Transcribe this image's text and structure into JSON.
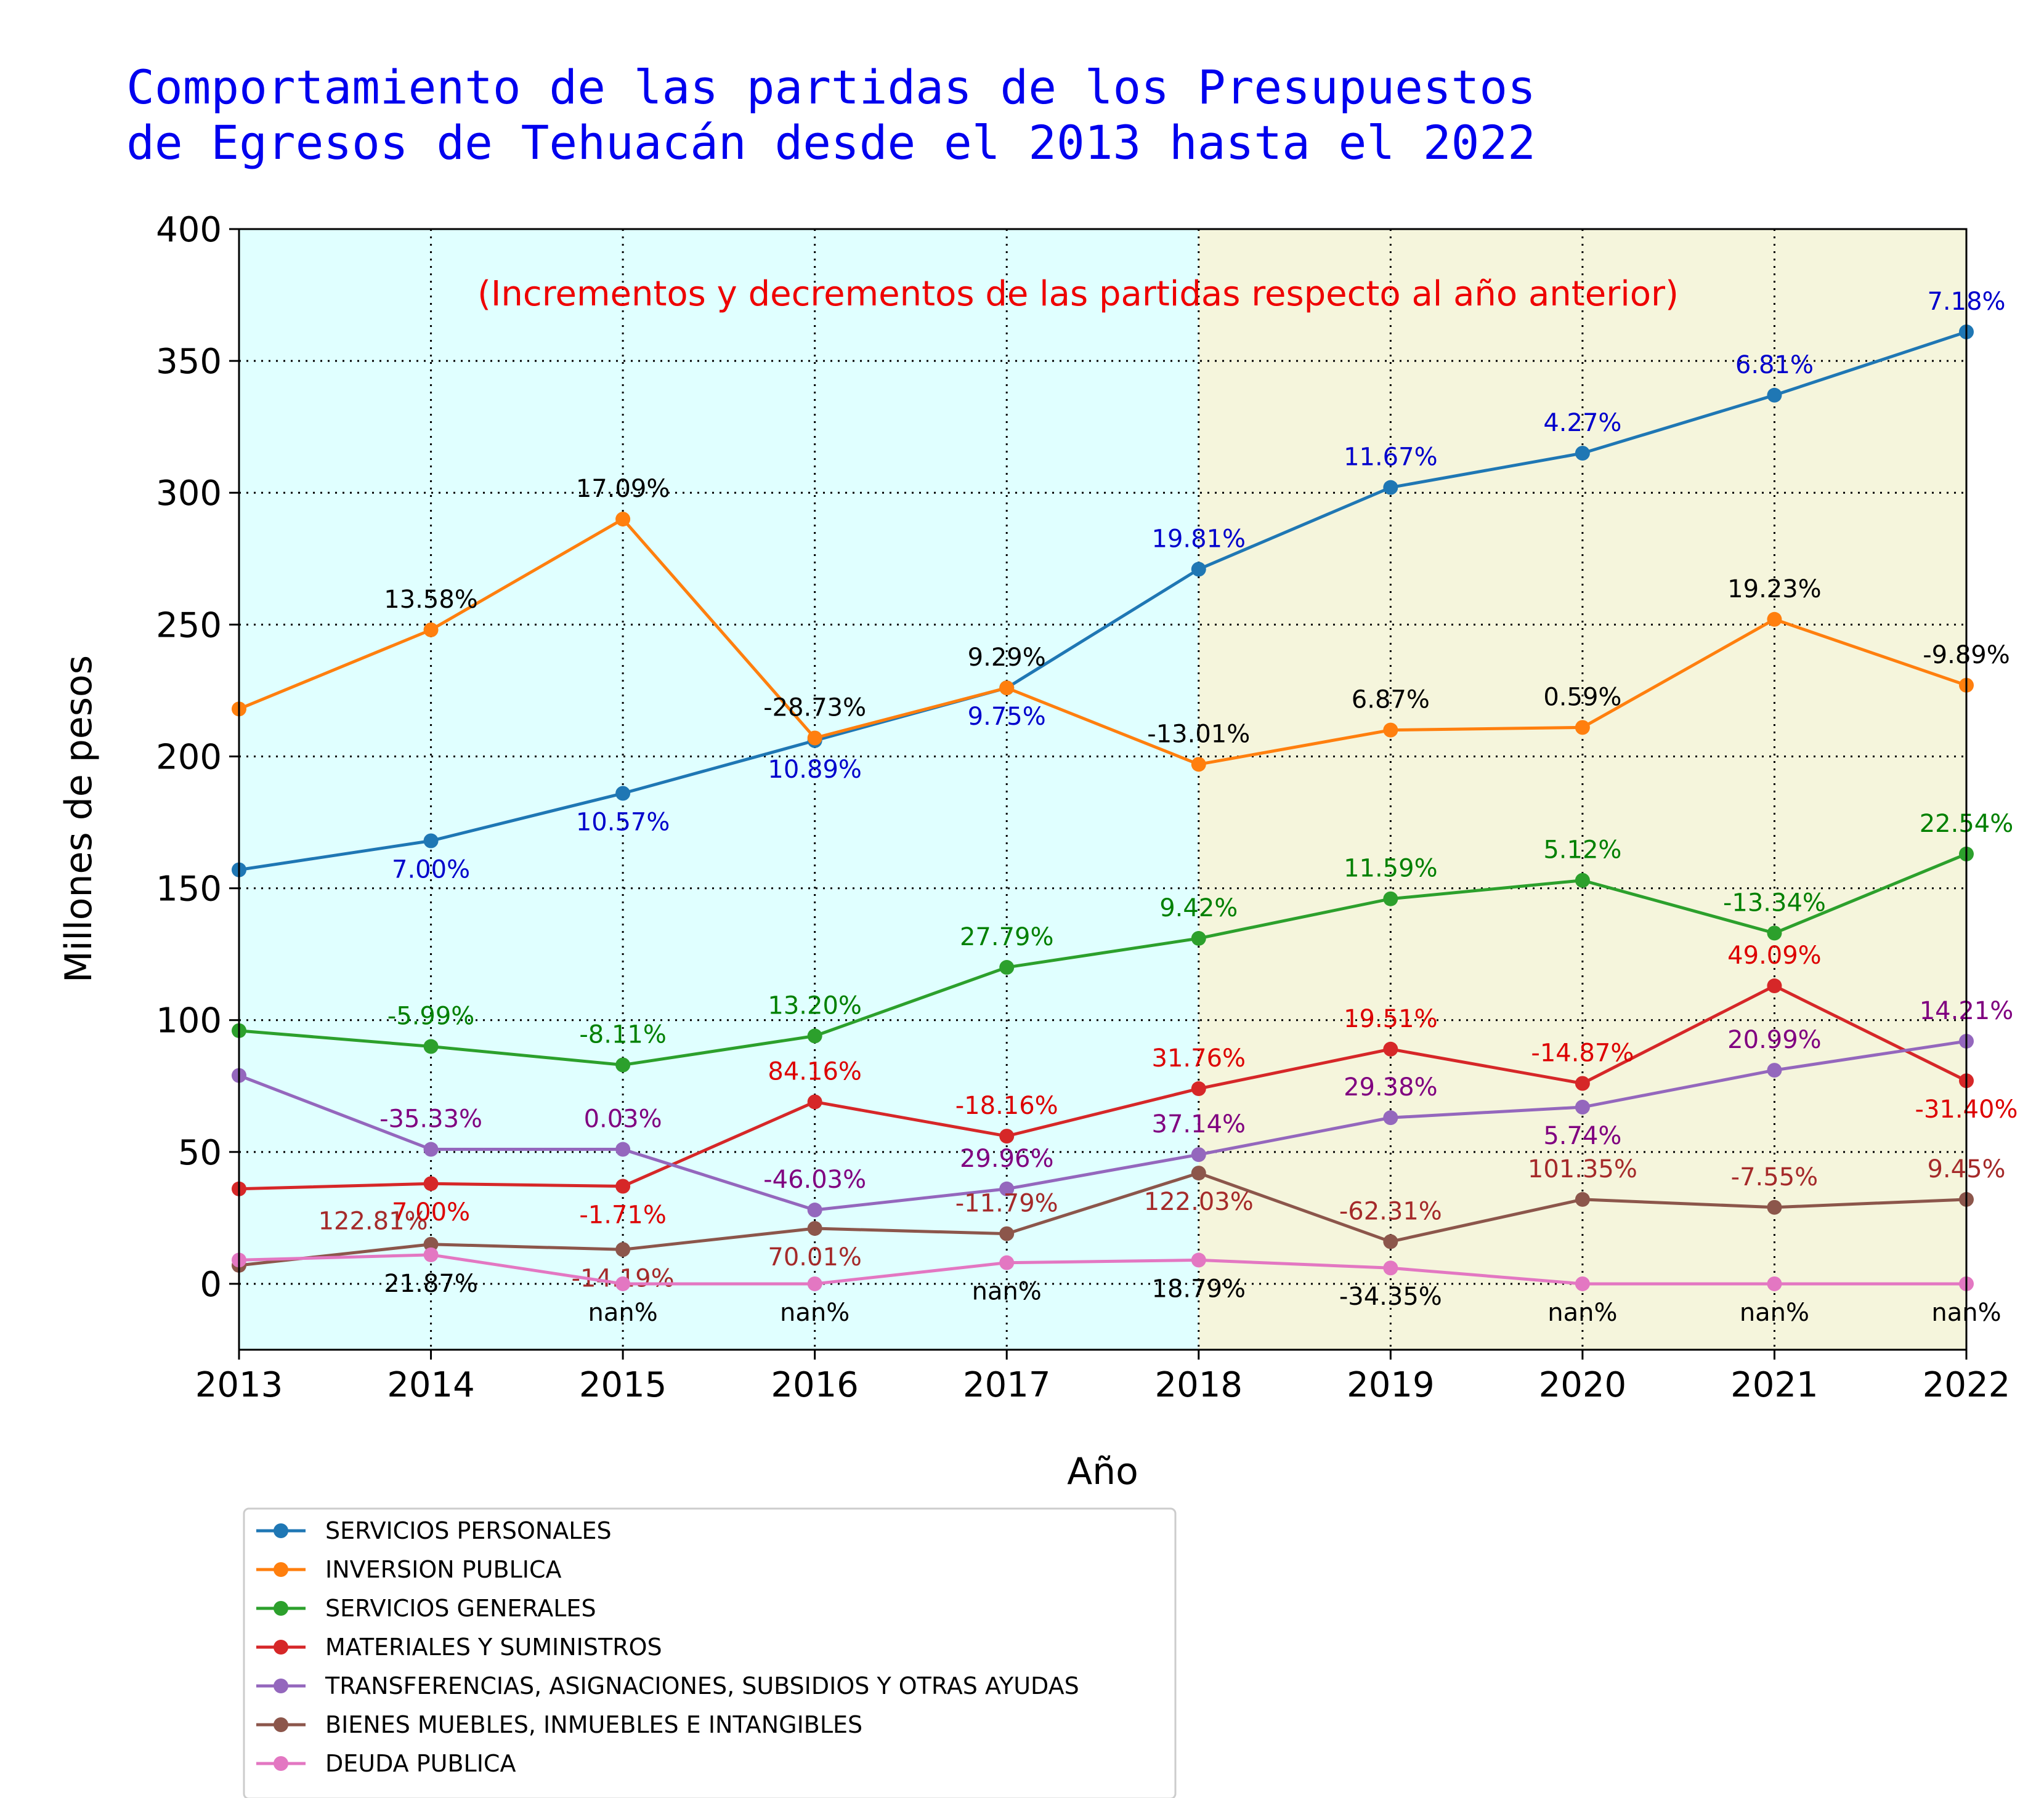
{
  "chart_data": {
    "type": "line",
    "title": [
      "Comportamiento de las partidas de los Presupuestos",
      "de Egresos de Tehuacán desde el 2013 hasta el 2022"
    ],
    "subtitle": "(Incrementos y decrementos de las partidas respecto al año anterior)",
    "xlabel": "Año",
    "ylabel": "Millones de pesos",
    "x": [
      2013,
      2014,
      2015,
      2016,
      2017,
      2018,
      2019,
      2020,
      2021,
      2022
    ],
    "xlim": [
      2013,
      2022
    ],
    "ylim": [
      -25,
      400
    ],
    "yticks": [
      0,
      50,
      100,
      150,
      200,
      250,
      300,
      350,
      400
    ],
    "grid": true,
    "legend_position": "below",
    "background_bands": [
      {
        "from": 2013,
        "to": 2018,
        "color": "#e0ffff"
      },
      {
        "from": 2018,
        "to": 2022,
        "color": "#f5f5dc"
      }
    ],
    "series": [
      {
        "name": "SERVICIOS PERSONALES",
        "color": "#1f77b4",
        "label_color": "#0000cc",
        "values": [
          157,
          168,
          186,
          206,
          226,
          271,
          302,
          315,
          337,
          361
        ],
        "labels": [
          "",
          "7.00%",
          "10.57%",
          "10.89%",
          "9.75%",
          "19.81%",
          "11.67%",
          "4.27%",
          "6.81%",
          "7.18%"
        ],
        "label_pos": [
          "",
          "below",
          "below",
          "below",
          "below",
          "above",
          "above",
          "above",
          "above",
          "above"
        ]
      },
      {
        "name": "INVERSION PUBLICA",
        "color": "#ff7f0e",
        "label_color": "#000000",
        "values": [
          218,
          248,
          290,
          207,
          226,
          197,
          210,
          211,
          252,
          227
        ],
        "labels": [
          "",
          "13.58%",
          "17.09%",
          "-28.73%",
          "9.29%",
          "-13.01%",
          "6.87%",
          "0.59%",
          "19.23%",
          "-9.89%"
        ],
        "label_pos": [
          "",
          "above",
          "above",
          "above",
          "above",
          "above",
          "above",
          "above",
          "above",
          "above"
        ]
      },
      {
        "name": "SERVICIOS GENERALES",
        "color": "#2ca02c",
        "label_color": "#008000",
        "values": [
          96,
          90,
          83,
          94,
          120,
          131,
          146,
          153,
          133,
          163
        ],
        "labels": [
          "",
          "-5.99%",
          "-8.11%",
          "13.20%",
          "27.79%",
          "9.42%",
          "11.59%",
          "5.12%",
          "-13.34%",
          "22.54%"
        ],
        "label_pos": [
          "",
          "above",
          "above",
          "above",
          "above",
          "above",
          "above",
          "above",
          "above",
          "above"
        ]
      },
      {
        "name": "MATERIALES Y SUMINISTROS",
        "color": "#d62728",
        "label_color": "#dd0000",
        "values": [
          36,
          38,
          37,
          69,
          56,
          74,
          89,
          76,
          113,
          77
        ],
        "labels": [
          "",
          "7.00%",
          "-1.71%",
          "84.16%",
          "-18.16%",
          "31.76%",
          "19.51%",
          "-14.87%",
          "49.09%",
          "-31.40%"
        ],
        "label_pos": [
          "",
          "below",
          "below",
          "above",
          "above",
          "above",
          "above",
          "above",
          "above",
          "below"
        ]
      },
      {
        "name": "TRANSFERENCIAS, ASIGNACIONES, SUBSIDIOS Y OTRAS AYUDAS",
        "color": "#9467bd",
        "label_color": "#800080",
        "values": [
          79,
          51,
          51,
          28,
          36,
          49,
          63,
          67,
          81,
          92
        ],
        "labels": [
          "",
          "-35.33%",
          "0.03%",
          "-46.03%",
          "29.96%",
          "37.14%",
          "29.38%",
          "5.74%",
          "20.99%",
          "14.21%"
        ],
        "label_pos": [
          "",
          "above",
          "above",
          "above",
          "above",
          "above",
          "above",
          "below",
          "above",
          "above"
        ]
      },
      {
        "name": "BIENES MUEBLES, INMUEBLES E INTANGIBLES",
        "color": "#8c564b",
        "label_color": "#a52a2a",
        "values": [
          7,
          15,
          13,
          21,
          19,
          42,
          16,
          32,
          29,
          32
        ],
        "labels": [
          "",
          "122.81%",
          "-14.19%",
          "70.01%",
          "-11.79%",
          "122.03%",
          "-62.31%",
          "101.35%",
          "-7.55%",
          "9.45%"
        ],
        "label_pos": [
          "",
          "above-left",
          "below",
          "below",
          "above",
          "below",
          "above",
          "above",
          "above",
          "above"
        ]
      },
      {
        "name": "DEUDA PUBLICA",
        "color": "#e377c2",
        "label_color": "#000000",
        "values": [
          9,
          11,
          0,
          0,
          8,
          9,
          6,
          0,
          0,
          0
        ],
        "labels": [
          "",
          "21.87%",
          "nan%",
          "nan%",
          "nan%",
          "18.79%",
          "-34.35%",
          "nan%",
          "nan%",
          "nan%"
        ],
        "label_pos": [
          "",
          "below",
          "below",
          "below",
          "below",
          "below",
          "below",
          "below",
          "below",
          "below"
        ]
      }
    ]
  }
}
